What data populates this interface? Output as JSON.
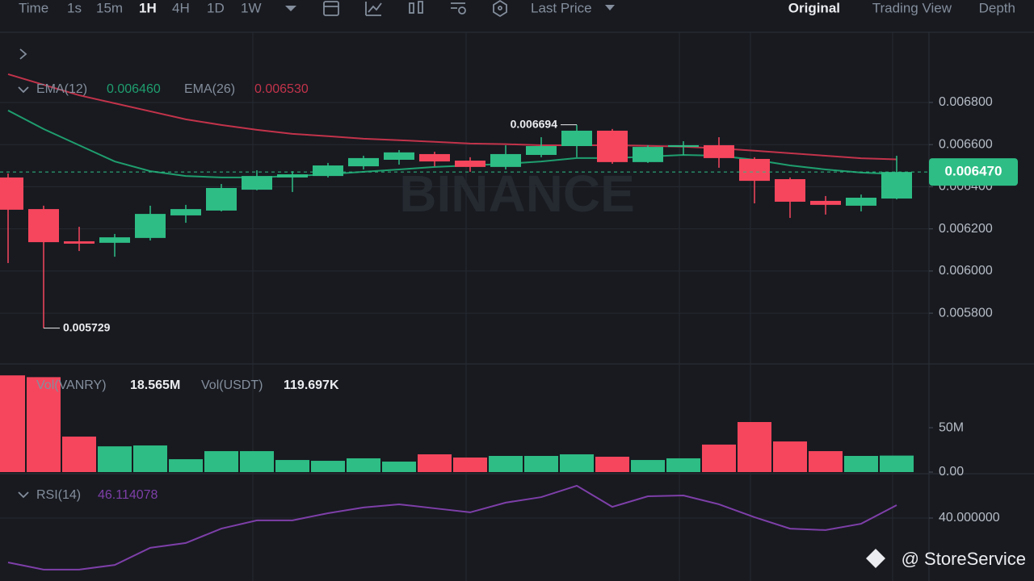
{
  "toolbar": {
    "intervals": [
      "Time",
      "1s",
      "15m",
      "1H",
      "4H",
      "1D",
      "1W"
    ],
    "price_type": "Last Price",
    "views": [
      "Original",
      "Trading View",
      "Depth"
    ]
  },
  "watermark": "BINANCE",
  "credit": "@ StoreService",
  "chart_data": [
    {
      "type": "candlestick",
      "ylim": [
        0.005563,
        0.007133
      ],
      "yticks": [
        {
          "value": 0.0058,
          "label": "0.005800"
        },
        {
          "value": 0.006,
          "label": "0.006000"
        },
        {
          "value": 0.0062,
          "label": "0.006200"
        },
        {
          "value": 0.0064,
          "label": "0.006400"
        },
        {
          "value": 0.0066,
          "label": "0.006600"
        },
        {
          "value": 0.0068,
          "label": "0.006800"
        }
      ],
      "grid": true,
      "up_color": "#2ebd85",
      "down_color": "#f6465d",
      "open": [
        0.006444,
        0.006294,
        0.006141,
        0.006134,
        0.006157,
        0.006264,
        0.006287,
        0.006386,
        0.006444,
        0.006451,
        0.006497,
        0.006528,
        0.006555,
        0.006524,
        0.006494,
        0.006551,
        0.006593,
        0.006666,
        0.006517,
        0.006589,
        0.006597,
        0.006532,
        0.006436,
        0.006333,
        0.00631,
        0.006344
      ],
      "high": [
        0.006463,
        0.00631,
        0.00621,
        0.006176,
        0.00631,
        0.006314,
        0.006413,
        0.006478,
        0.006474,
        0.006513,
        0.006547,
        0.006574,
        0.006566,
        0.00654,
        0.006597,
        0.006635,
        0.006694,
        0.006674,
        0.006597,
        0.006616,
        0.006635,
        0.00654,
        0.006444,
        0.006356,
        0.006363,
        0.006547
      ],
      "low": [
        0.006038,
        0.005729,
        0.006095,
        0.006068,
        0.006145,
        0.006229,
        0.006283,
        0.006383,
        0.006375,
        0.006444,
        0.006482,
        0.006505,
        0.006497,
        0.006471,
        0.006482,
        0.00654,
        0.00654,
        0.006509,
        0.006513,
        0.006551,
        0.00649,
        0.006321,
        0.006252,
        0.006268,
        0.006283,
        0.00634
      ],
      "close": [
        0.006291,
        0.006137,
        0.00613,
        0.00616,
        0.006271,
        0.006294,
        0.006394,
        0.006451,
        0.006459,
        0.006501,
        0.006536,
        0.006563,
        0.00652,
        0.006494,
        0.006555,
        0.006593,
        0.006666,
        0.006517,
        0.006589,
        0.006597,
        0.006536,
        0.006428,
        0.006329,
        0.006314,
        0.006348,
        0.00647
      ],
      "high_label": "0.006694",
      "low_label": "0.005729",
      "last_price": {
        "value": 0.00647,
        "label": "0.006470"
      },
      "overlays": [
        {
          "name": "EMA(12)",
          "color": "#1f9e6e",
          "legend_label": "0.006460",
          "values": [
            0.006762,
            0.006674,
            0.006597,
            0.00652,
            0.006474,
            0.006451,
            0.006444,
            0.006444,
            0.006451,
            0.006459,
            0.006471,
            0.006482,
            0.006494,
            0.006501,
            0.006509,
            0.00652,
            0.006536,
            0.006536,
            0.006543,
            0.006551,
            0.006547,
            0.006528,
            0.006501,
            0.006482,
            0.006467,
            0.00646
          ]
        },
        {
          "name": "EMA(26)",
          "color": "#c2334a",
          "legend_label": "0.006530",
          "values": [
            0.006934,
            0.006884,
            0.006834,
            0.006796,
            0.006758,
            0.00672,
            0.006693,
            0.00667,
            0.006651,
            0.00664,
            0.006628,
            0.006621,
            0.006613,
            0.006605,
            0.006602,
            0.006597,
            0.006597,
            0.006597,
            0.006594,
            0.00659,
            0.006582,
            0.006571,
            0.006559,
            0.006547,
            0.006535,
            0.00653
          ]
        }
      ]
    },
    {
      "type": "bar",
      "ylim": [
        0,
        121000000
      ],
      "yticks": [
        {
          "value": 0,
          "label": "0.00"
        },
        {
          "value": 50000000,
          "label": "50M"
        }
      ],
      "series": [
        {
          "name": "Vol(VANRY)",
          "legend_label": "18.565M",
          "values": [
            109000000,
            107000000,
            40000000,
            29000000,
            30000000,
            14500000,
            23600000,
            23600000,
            13600000,
            12700000,
            15500000,
            11800000,
            20000000,
            16400000,
            18200000,
            18200000,
            20000000,
            17300000,
            13600000,
            15500000,
            31000000,
            56400000,
            34500000,
            23600000,
            18200000,
            18565000
          ]
        }
      ],
      "extra_legend": {
        "name": "Vol(USDT)",
        "label": "119.697K"
      }
    },
    {
      "type": "line",
      "ylim": [
        10.2,
        56.8
      ],
      "yticks": [
        {
          "value": 40,
          "label": "40.000000"
        }
      ],
      "series": [
        {
          "name": "RSI(14)",
          "color": "#7e3fa8",
          "legend_label": "46.114078",
          "values": [
            19.0,
            15.6,
            15.6,
            17.8,
            25.9,
            28.2,
            35.0,
            38.9,
            38.9,
            42.3,
            45.0,
            46.5,
            44.6,
            42.7,
            47.3,
            49.9,
            55.3,
            45.3,
            50.3,
            50.7,
            46.5,
            40.4,
            35.0,
            34.3,
            37.3,
            46.114078
          ]
        }
      ]
    }
  ]
}
